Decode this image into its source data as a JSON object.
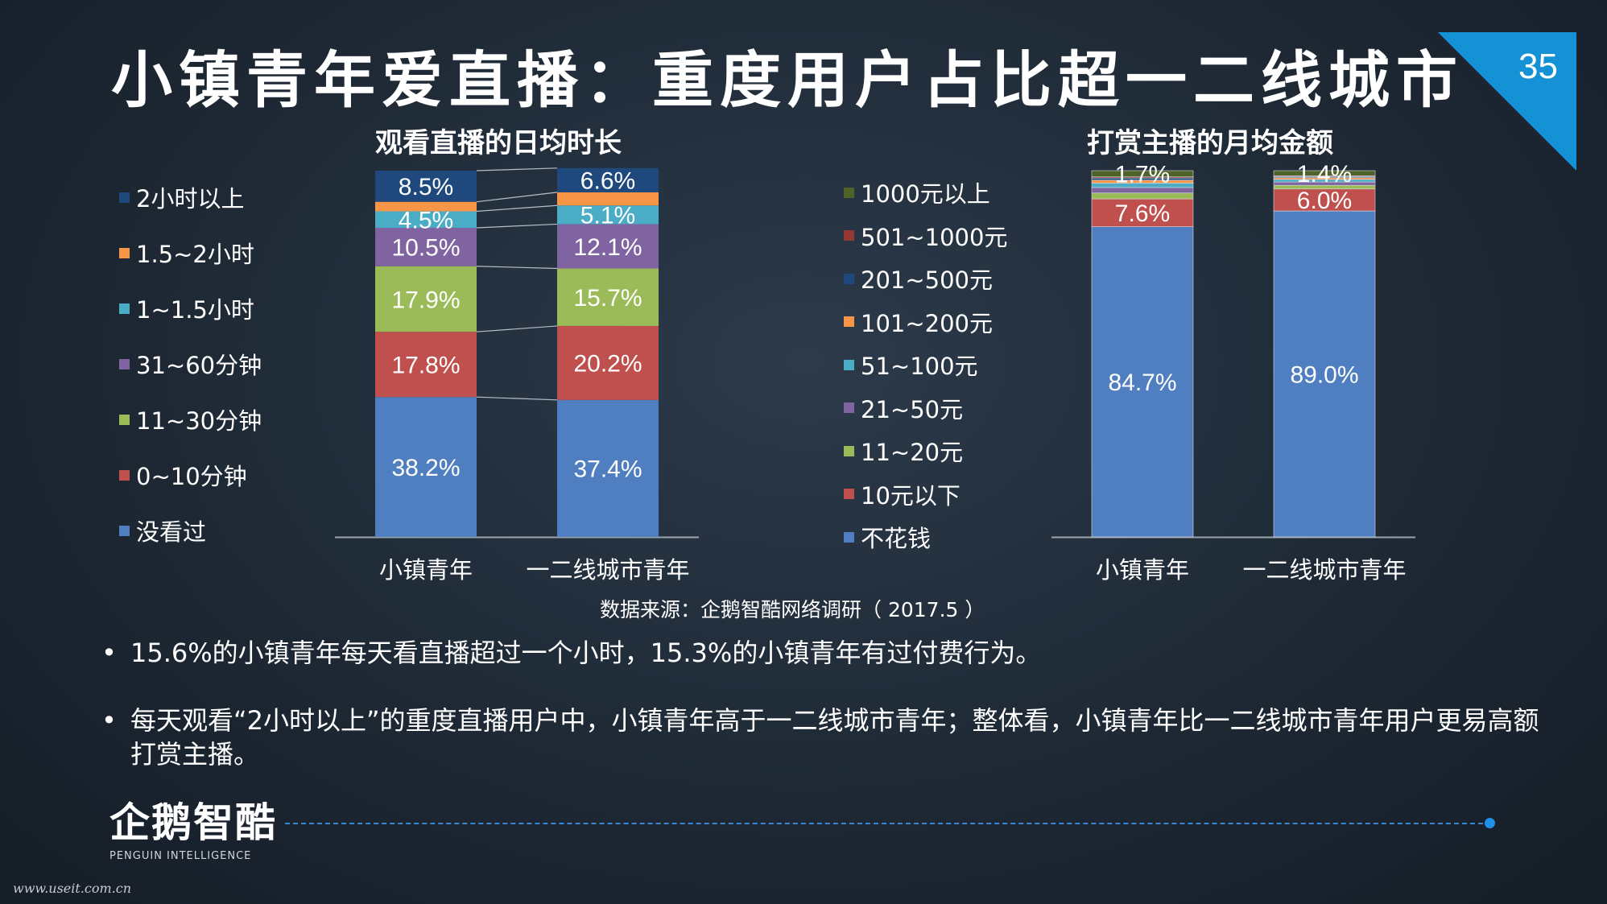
{
  "title": "小镇青年爱直播：重度用户占比超一二线城市",
  "page_number": "35",
  "source": "数据来源：企鹅智酷网络调研（ 2017.5 ）",
  "bullets": [
    "15.6%的小镇青年每天看直播超过一个小时，15.3%的小镇青年有过付费行为。",
    "每天观看“2小时以上”的重度直播用户中，小镇青年高于一二线城市青年；整体看，小镇青年比一二线城市青年用户更易高额打赏主播。"
  ],
  "logo": {
    "text": "企鹅智酷",
    "sub": "PENGUIN INTELLIGENCE"
  },
  "watermark": "www.useit.com.cn",
  "colors": {
    "accent": "#1591d6",
    "dotline": "#3a86d4"
  },
  "chart_data": [
    {
      "type": "bar",
      "stacked": true,
      "title": "观看直播的日均时长",
      "categories": [
        "小镇青年",
        "一二线城市青年"
      ],
      "ylim": [
        0,
        100
      ],
      "legend_position": "left",
      "series": [
        {
          "name": "没看过",
          "color": "#4f7fc1",
          "values": [
            38.2,
            37.4
          ],
          "labels": [
            "38.2%",
            "37.4%"
          ]
        },
        {
          "name": "0~10分钟",
          "color": "#c0504d",
          "values": [
            17.8,
            20.2
          ],
          "labels": [
            "17.8%",
            "20.2%"
          ]
        },
        {
          "name": "11~30分钟",
          "color": "#9bbb59",
          "values": [
            17.9,
            15.7
          ],
          "labels": [
            "17.9%",
            "15.7%"
          ]
        },
        {
          "name": "31~60分钟",
          "color": "#8064a2",
          "values": [
            10.5,
            12.1
          ],
          "labels": [
            "10.5%",
            "12.1%"
          ]
        },
        {
          "name": "1~1.5小时",
          "color": "#4bacc6",
          "values": [
            4.5,
            5.1
          ],
          "labels": [
            "4.5%",
            "5.1%"
          ]
        },
        {
          "name": "1.5~2小时",
          "color": "#f79646",
          "values": [
            2.6,
            3.6
          ],
          "labels": [
            "",
            ""
          ]
        },
        {
          "name": "2小时以上",
          "color": "#1f497d",
          "values": [
            8.5,
            6.6
          ],
          "labels": [
            "8.5%",
            "6.6%"
          ]
        }
      ]
    },
    {
      "type": "bar",
      "stacked": true,
      "title": "打赏主播的月均金额",
      "categories": [
        "小镇青年",
        "一二线城市青年"
      ],
      "ylim": [
        0,
        100
      ],
      "legend_position": "left",
      "series": [
        {
          "name": "不花钱",
          "color": "#4f7fc1",
          "values": [
            84.7,
            89.0
          ],
          "labels": [
            "84.7%",
            "89.0%"
          ]
        },
        {
          "name": "10元以下",
          "color": "#c0504d",
          "values": [
            7.6,
            6.0
          ],
          "labels": [
            "7.6%",
            "6.0%"
          ]
        },
        {
          "name": "11~20元",
          "color": "#9bbb59",
          "values": [
            1.6,
            1.0
          ],
          "labels": [
            "",
            ""
          ]
        },
        {
          "name": "21~50元",
          "color": "#8064a2",
          "values": [
            1.5,
            0.9
          ],
          "labels": [
            "",
            ""
          ]
        },
        {
          "name": "51~100元",
          "color": "#4bacc6",
          "values": [
            1.2,
            0.7
          ],
          "labels": [
            "",
            ""
          ]
        },
        {
          "name": "101~200元",
          "color": "#f79646",
          "values": [
            0.8,
            0.5
          ],
          "labels": [
            "",
            ""
          ]
        },
        {
          "name": "201~500元",
          "color": "#1f497d",
          "values": [
            0.6,
            0.3
          ],
          "labels": [
            "",
            ""
          ]
        },
        {
          "name": "501~1000元",
          "color": "#953735",
          "values": [
            0.3,
            0.2
          ],
          "labels": [
            "",
            ""
          ]
        },
        {
          "name": "1000元以上",
          "color": "#4f6228",
          "values": [
            1.7,
            1.4
          ],
          "labels": [
            "1.7%",
            "1.4%"
          ]
        }
      ]
    }
  ]
}
